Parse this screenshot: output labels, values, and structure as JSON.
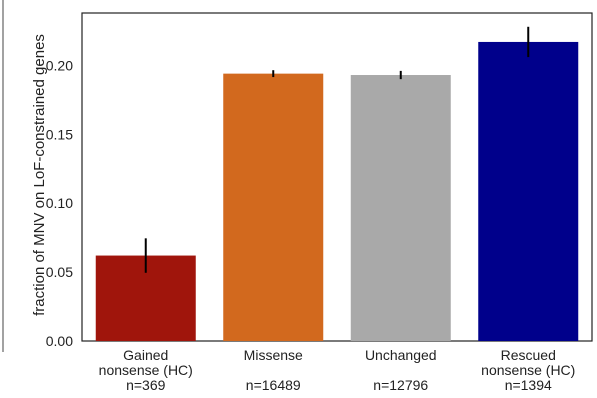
{
  "chart_data": {
    "type": "bar",
    "title": "",
    "xlabel": "",
    "ylabel": "fraction of MNV on LoF-constrained genes",
    "ylim": [
      0,
      0.238
    ],
    "yticks": [
      "0.00",
      "0.05",
      "0.10",
      "0.15",
      "0.20"
    ],
    "grid": false,
    "categories": [
      {
        "label_lines": [
          "Gained",
          "nonsense (HC)",
          "n=369"
        ],
        "value": 0.062,
        "err": 0.0125,
        "color": "#a0150c"
      },
      {
        "label_lines": [
          "Missense",
          "",
          "n=16489"
        ],
        "value": 0.194,
        "err": 0.0025,
        "color": "#d2691e"
      },
      {
        "label_lines": [
          "Unchanged",
          "",
          "n=12796"
        ],
        "value": 0.193,
        "err": 0.003,
        "color": "#a9a9a9"
      },
      {
        "label_lines": [
          "Rescued",
          "nonsense (HC)",
          "n=1394"
        ],
        "value": 0.217,
        "err": 0.011,
        "color": "#00008b"
      }
    ]
  }
}
